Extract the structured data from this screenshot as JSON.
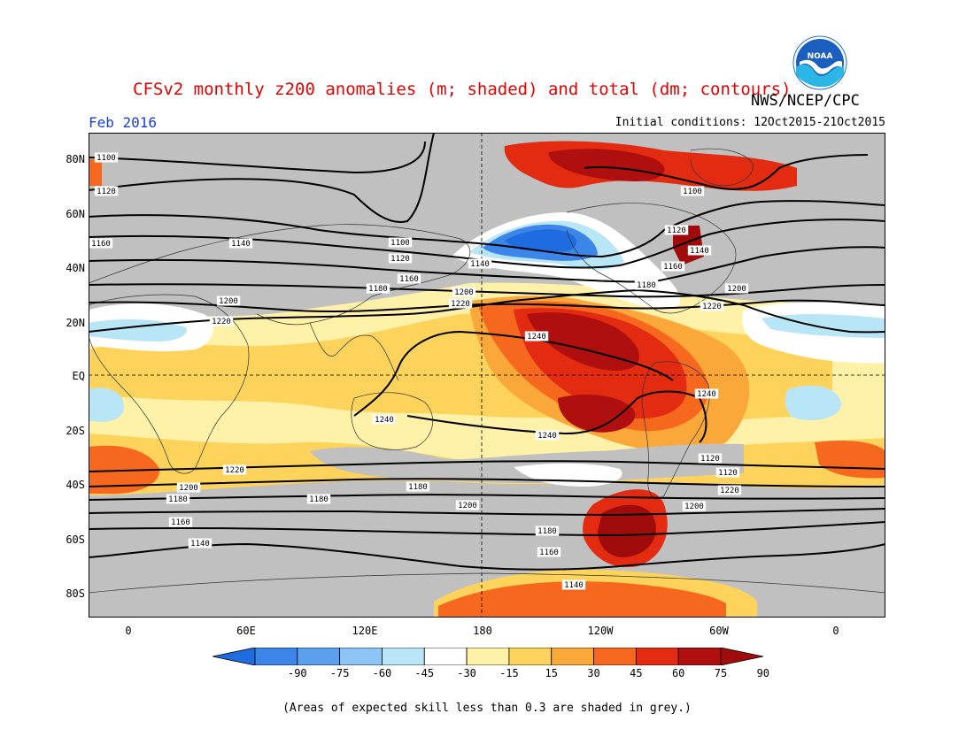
{
  "title": "CFSv2 monthly z200 anomalies (m; shaded) and total (dm; contours)",
  "agency": "NWS/NCEP/CPC",
  "logo_text": "NOAA",
  "month": "Feb 2016",
  "initial_conditions": "Initial conditions: 12Oct2015-21Oct2015",
  "note": "(Areas of expected skill less than 0.3 are shaded in grey.)",
  "lat_labels": [
    "80N",
    "60N",
    "40N",
    "20N",
    "EQ",
    "20S",
    "40S",
    "60S",
    "80S"
  ],
  "lon_labels": [
    "0",
    "60E",
    "120E",
    "180",
    "120W",
    "60W",
    "0"
  ],
  "colorbar": {
    "labels": [
      "-90",
      "-75",
      "-60",
      "-45",
      "-30",
      "-15",
      "15",
      "30",
      "45",
      "60",
      "75",
      "90"
    ],
    "colors": [
      "#1e6ce0",
      "#3b86e8",
      "#5aa0ee",
      "#8cc4f5",
      "#b9e6f7",
      "#ffffff",
      "#fff2a8",
      "#fdd35c",
      "#fba83b",
      "#f7681f",
      "#e32b12",
      "#b00f0f",
      "#a00b0b"
    ],
    "grey": "#c0c0c0"
  },
  "contour_labels": [
    {
      "text": "1100",
      "pos": "top-left"
    },
    {
      "text": "1120",
      "pos": "left"
    },
    {
      "text": "1160",
      "pos": "left"
    },
    {
      "text": "1140",
      "pos": "atlantic-africa"
    },
    {
      "text": "1100",
      "pos": "asia"
    },
    {
      "text": "1120",
      "pos": "asia"
    },
    {
      "text": "1160",
      "pos": "asia"
    },
    {
      "text": "1180",
      "pos": "asia"
    },
    {
      "text": "1140",
      "pos": "pacific"
    },
    {
      "text": "1200",
      "pos": "pacific"
    },
    {
      "text": "1220",
      "pos": "pacific"
    },
    {
      "text": "1200",
      "pos": "africa"
    },
    {
      "text": "1220",
      "pos": "africa"
    },
    {
      "text": "1240",
      "pos": "pacific-tropics"
    },
    {
      "text": "1240",
      "pos": "australia"
    },
    {
      "text": "1240",
      "pos": "south-pacific"
    },
    {
      "text": "1240",
      "pos": "south-america"
    },
    {
      "text": "1100",
      "pos": "greenland"
    },
    {
      "text": "1120",
      "pos": "north-america"
    },
    {
      "text": "1140",
      "pos": "north-america"
    },
    {
      "text": "1160",
      "pos": "north-america"
    },
    {
      "text": "1180",
      "pos": "north-america"
    },
    {
      "text": "1200",
      "pos": "atlantic"
    },
    {
      "text": "1220",
      "pos": "atlantic"
    },
    {
      "text": "1220",
      "pos": "southern"
    },
    {
      "text": "1200",
      "pos": "southern"
    },
    {
      "text": "1180",
      "pos": "southern"
    },
    {
      "text": "1160",
      "pos": "southern"
    },
    {
      "text": "1140",
      "pos": "southern"
    },
    {
      "text": "1120",
      "pos": "southern"
    },
    {
      "text": "1220",
      "pos": "south-atlantic"
    },
    {
      "text": "1200",
      "pos": "south-atlantic"
    },
    {
      "text": "1180",
      "pos": "south-atlantic"
    },
    {
      "text": "1200",
      "pos": "south-indian"
    },
    {
      "text": "1180",
      "pos": "south-pacific"
    },
    {
      "text": "1180",
      "pos": "southern-indian"
    },
    {
      "text": "1160",
      "pos": "south-pacific"
    },
    {
      "text": "1140",
      "pos": "south-pacific"
    },
    {
      "text": "1120",
      "pos": "south-pacific"
    }
  ]
}
